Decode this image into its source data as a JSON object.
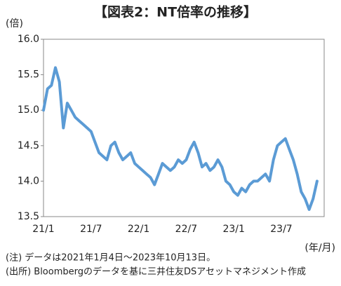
{
  "chart_data": {
    "type": "line",
    "title": "【図表2：NT倍率の推移】",
    "y_unit": "(倍)",
    "x_unit": "(年/月)",
    "notes": [
      "(注) データは2021年1月4日～2023年10月13日。",
      "(出所) Bloombergのデータを基に三井住友DSアセットマネジメント作成"
    ],
    "categories": [
      "21/1",
      null,
      null,
      null,
      null,
      null,
      null,
      null,
      null,
      null,
      null,
      null,
      "21/7",
      null,
      null,
      null,
      null,
      null,
      null,
      null,
      null,
      null,
      null,
      null,
      "22/1",
      null,
      null,
      null,
      null,
      null,
      null,
      null,
      null,
      null,
      null,
      null,
      "22/7",
      null,
      null,
      null,
      null,
      null,
      null,
      null,
      null,
      null,
      null,
      null,
      "23/1",
      null,
      null,
      null,
      null,
      null,
      null,
      null,
      null,
      null,
      null,
      null,
      "23/7",
      null,
      null,
      null,
      null,
      null,
      null,
      null,
      null,
      null
    ],
    "series": [
      {
        "color": "#5b9bd5",
        "values": [
          15.0,
          15.3,
          15.35,
          15.6,
          15.4,
          14.75,
          15.1,
          15.0,
          14.9,
          14.85,
          14.8,
          14.75,
          14.7,
          14.55,
          14.4,
          14.35,
          14.3,
          14.5,
          14.55,
          14.4,
          14.3,
          14.35,
          14.4,
          14.25,
          14.2,
          14.15,
          14.1,
          14.05,
          13.95,
          14.1,
          14.25,
          14.2,
          14.15,
          14.2,
          14.3,
          14.25,
          14.3,
          14.45,
          14.55,
          14.4,
          14.2,
          14.25,
          14.15,
          14.2,
          14.3,
          14.2,
          14.0,
          13.95,
          13.85,
          13.8,
          13.9,
          13.85,
          13.95,
          14.0,
          14.0,
          14.05,
          14.1,
          14.0,
          14.3,
          14.5,
          14.55,
          14.6,
          14.45,
          14.3,
          14.1,
          13.85,
          13.75,
          13.6,
          13.75,
          14.0
        ]
      }
    ],
    "ylim": [
      13.5,
      16.0
    ],
    "yticks": [
      13.5,
      {
        "value": 14,
        "label": "14.0"
      },
      14.5,
      {
        "value": 15,
        "label": "15.0"
      },
      15.5,
      {
        "value": 16,
        "label": "16.0"
      }
    ]
  }
}
